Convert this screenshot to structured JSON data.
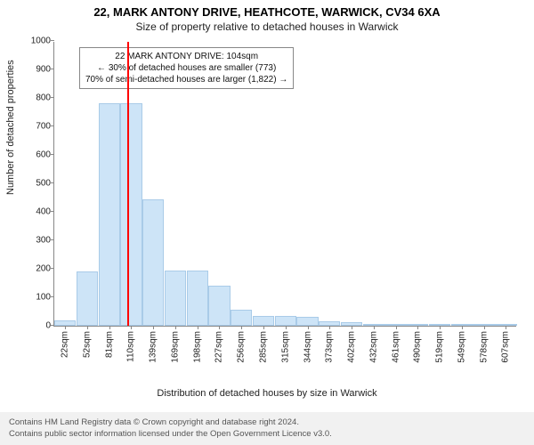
{
  "title_main": "22, MARK ANTONY DRIVE, HEATHCOTE, WARWICK, CV34 6XA",
  "title_sub": "Size of property relative to detached houses in Warwick",
  "chart": {
    "type": "histogram",
    "ylabel": "Number of detached properties",
    "xlabel": "Distribution of detached houses by size in Warwick",
    "ylim": [
      0,
      1000
    ],
    "ytick_step": 100,
    "yticks": [
      0,
      100,
      200,
      300,
      400,
      500,
      600,
      700,
      800,
      900,
      1000
    ],
    "bar_color": "#cde4f7",
    "bar_border": "#a9cbe8",
    "background_color": "#ffffff",
    "axis_color": "#888888",
    "text_color": "#222222",
    "marker_color": "#ff0000",
    "marker_x_index": 2.83,
    "bars": [
      {
        "label": "22sqm",
        "value": 20
      },
      {
        "label": "52sqm",
        "value": 190
      },
      {
        "label": "81sqm",
        "value": 780
      },
      {
        "label": "110sqm",
        "value": 780
      },
      {
        "label": "139sqm",
        "value": 445
      },
      {
        "label": "169sqm",
        "value": 195
      },
      {
        "label": "198sqm",
        "value": 195
      },
      {
        "label": "227sqm",
        "value": 140
      },
      {
        "label": "256sqm",
        "value": 55
      },
      {
        "label": "285sqm",
        "value": 35
      },
      {
        "label": "315sqm",
        "value": 35
      },
      {
        "label": "344sqm",
        "value": 30
      },
      {
        "label": "373sqm",
        "value": 15
      },
      {
        "label": "402sqm",
        "value": 12
      },
      {
        "label": "432sqm",
        "value": 6
      },
      {
        "label": "461sqm",
        "value": 6
      },
      {
        "label": "490sqm",
        "value": 4
      },
      {
        "label": "519sqm",
        "value": 1
      },
      {
        "label": "549sqm",
        "value": 2
      },
      {
        "label": "578sqm",
        "value": 1
      },
      {
        "label": "607sqm",
        "value": 1
      }
    ],
    "annotation": {
      "line1": "22 MARK ANTONY DRIVE: 104sqm",
      "line2": "← 30% of detached houses are smaller (773)",
      "line3": "70% of semi-detached houses are larger (1,822) →",
      "border_color": "#888888",
      "background_color": "#ffffff",
      "fontsize": 10
    }
  },
  "footer": {
    "line1": "Contains HM Land Registry data © Crown copyright and database right 2024.",
    "line2": "Contains public sector information licensed under the Open Government Licence v3.0.",
    "background_color": "#f1f1f1",
    "text_color": "#555555"
  }
}
